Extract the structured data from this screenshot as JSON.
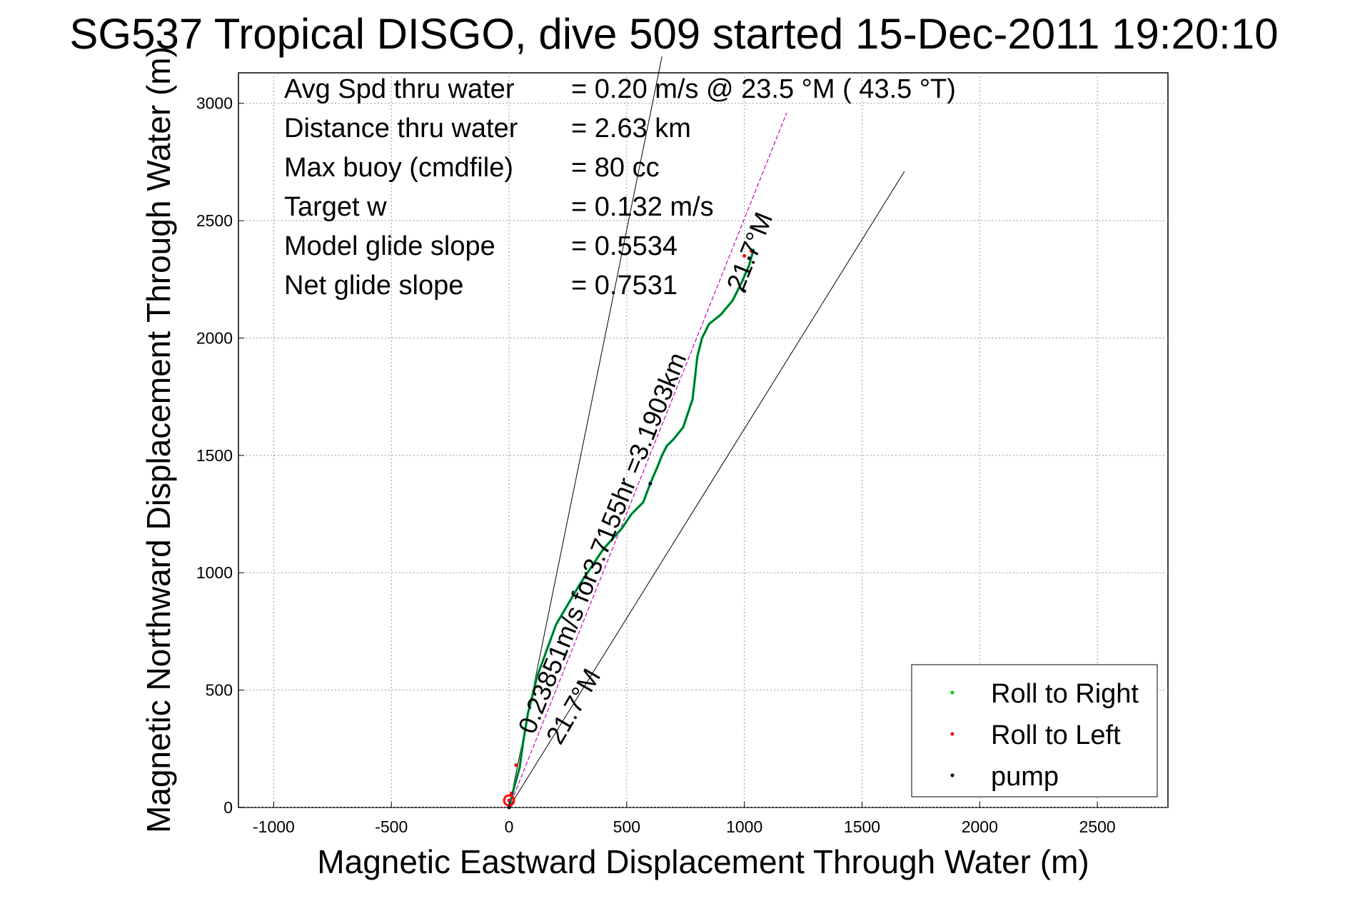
{
  "chart_data": {
    "type": "line",
    "title": "SG537 Tropical DISGO, dive 509 started 15-Dec-2011 19:20:10",
    "xlabel": "Magnetic Eastward Displacement Through Water (m)",
    "ylabel": "Magnetic Northward Displacement Through Water (m)",
    "xlim": [
      -1150,
      2800
    ],
    "ylim": [
      0,
      3130
    ],
    "xticks": [
      -1000,
      -500,
      0,
      500,
      1000,
      1500,
      2000,
      2500
    ],
    "yticks": [
      0,
      500,
      1000,
      1500,
      2000,
      2500,
      3000
    ],
    "xtick_labels": [
      "-1000",
      "-500",
      "0",
      "500",
      "1000",
      "1500",
      "2000",
      "2500"
    ],
    "ytick_labels": [
      "0",
      "500",
      "1000",
      "1500",
      "2000",
      "2500",
      "3000"
    ],
    "grid": true,
    "legend_position": "bottom-right",
    "stats": [
      {
        "label": "Avg Spd thru water",
        "value": "=  0.20 m/s @  23.5 °M ( 43.5 °T)"
      },
      {
        "label": "Distance thru water",
        "value": "=  2.63 km"
      },
      {
        "label": "Max buoy (cmdfile)",
        "value": "= 80 cc"
      },
      {
        "label": "Target w",
        "value": "= 0.132 m/s"
      },
      {
        "label": "Model glide slope",
        "value": "= 0.5534"
      },
      {
        "label": "Net glide slope",
        "value": "= 0.7531"
      }
    ],
    "annotations": {
      "current_speed": "0.23851m/s for3.7155hr =3.1903km",
      "heading_near": "21.7°M",
      "heading_far": "21.7°M"
    },
    "series": [
      {
        "name": "Roll to Right",
        "color": "#00cc00",
        "x": [
          0,
          20,
          45,
          60,
          80,
          120,
          200,
          300,
          400,
          480,
          520,
          570,
          600,
          630,
          650,
          670,
          700,
          740,
          760,
          780,
          790,
          800,
          820,
          850,
          900,
          950,
          990,
          1020,
          1040
        ],
        "y": [
          0,
          80,
          170,
          280,
          400,
          560,
          780,
          950,
          1100,
          1190,
          1250,
          1300,
          1380,
          1450,
          1500,
          1540,
          1570,
          1620,
          1680,
          1740,
          1830,
          1920,
          2000,
          2060,
          2100,
          2160,
          2240,
          2310,
          2380
        ]
      },
      {
        "name": "Roll to Left",
        "color": "#ff0000",
        "x": [
          0,
          10,
          30,
          1000,
          1030
        ],
        "y": [
          30,
          60,
          180,
          2350,
          2370
        ]
      },
      {
        "name": "pump",
        "color": "#000000",
        "x": [
          0,
          5,
          600,
          1000,
          1020
        ],
        "y": [
          0,
          10,
          1380,
          2200,
          2340
        ]
      },
      {
        "name": "track",
        "color": "#0000cc",
        "x": [
          0,
          20,
          45,
          60,
          80,
          120,
          200,
          300,
          400,
          480,
          520,
          570,
          600,
          630,
          650,
          670,
          700,
          740,
          760,
          780,
          790,
          800,
          820,
          850,
          900,
          950,
          990,
          1020,
          1040
        ],
        "y": [
          0,
          80,
          170,
          280,
          400,
          560,
          780,
          950,
          1100,
          1190,
          1250,
          1300,
          1380,
          1450,
          1500,
          1540,
          1570,
          1620,
          1680,
          1740,
          1830,
          1920,
          2000,
          2060,
          2100,
          2160,
          2240,
          2310,
          2380
        ]
      },
      {
        "name": "current-vector",
        "color": "#cc00cc",
        "x": [
          0,
          1180
        ],
        "y": [
          0,
          2960
        ]
      },
      {
        "name": "envelope-left",
        "color": "#000000",
        "x": [
          0,
          650
        ],
        "y": [
          0,
          3200
        ]
      },
      {
        "name": "envelope-right",
        "color": "#000000",
        "x": [
          0,
          1680
        ],
        "y": [
          0,
          2710
        ]
      }
    ]
  }
}
